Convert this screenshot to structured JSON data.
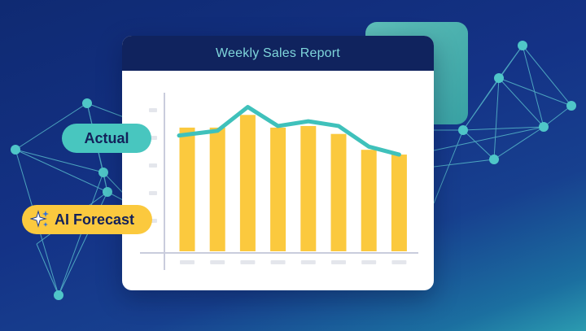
{
  "report": {
    "title": "Weekly Sales Report"
  },
  "legend": {
    "actual_label": "Actual",
    "forecast_label": "AI Forecast"
  },
  "icons": {
    "forecast_icon": "sparkle-icon"
  },
  "colors": {
    "actual": "#3fc1bb",
    "forecast": "#fbc93e",
    "header": "#10235e",
    "title": "#7fd6db"
  },
  "chart_data": {
    "type": "bar",
    "categories": [
      "",
      "",
      "",
      "",
      "",
      "",
      "",
      ""
    ],
    "series": [
      {
        "values": [
          0.78,
          0.78,
          0.86,
          0.78,
          0.79,
          0.74,
          0.64,
          0.61
        ]
      },
      {
        "values": [
          0.73,
          0.76,
          0.91,
          0.79,
          0.82,
          0.79,
          0.66,
          0.61
        ]
      }
    ],
    "ylim": [
      0,
      1
    ],
    "grid": false
  }
}
